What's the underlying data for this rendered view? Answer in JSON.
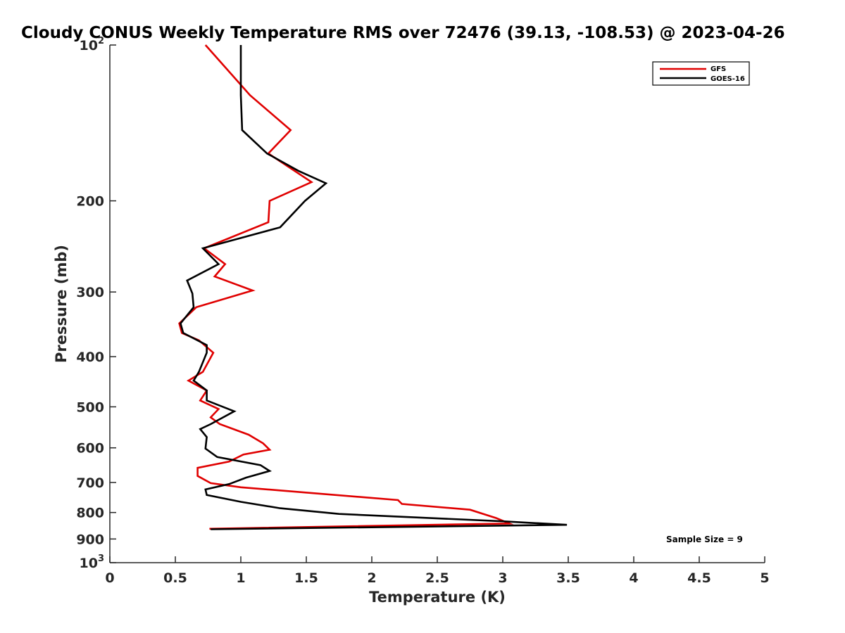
{
  "chart_data": {
    "type": "line",
    "title": "Cloudy CONUS Weekly Temperature RMS over 72476 (39.13, -108.53) @ 2023-04-26",
    "xlabel": "Temperature (K)",
    "ylabel": "Pressure (mb)",
    "xlim": [
      0,
      5
    ],
    "ylim": [
      100,
      1000
    ],
    "y_scale": "log",
    "y_reversed": true,
    "x_ticks": [
      "0",
      "0.5",
      "1",
      "1.5",
      "2",
      "2.5",
      "3",
      "3.5",
      "4",
      "4.5",
      "5"
    ],
    "y_ticks": [
      {
        "value": 100,
        "label": "10",
        "sup": "2"
      },
      {
        "value": 200,
        "label": "200",
        "sup": ""
      },
      {
        "value": 300,
        "label": "300",
        "sup": ""
      },
      {
        "value": 400,
        "label": "400",
        "sup": ""
      },
      {
        "value": 500,
        "label": "500",
        "sup": ""
      },
      {
        "value": 600,
        "label": "600",
        "sup": ""
      },
      {
        "value": 700,
        "label": "700",
        "sup": ""
      },
      {
        "value": 800,
        "label": "800",
        "sup": ""
      },
      {
        "value": 900,
        "label": "900",
        "sup": ""
      },
      {
        "value": 1000,
        "label": "10",
        "sup": "3"
      }
    ],
    "grid": false,
    "legend_position": "top-right",
    "series": [
      {
        "name": "GFS",
        "color": "#e00000",
        "points": [
          [
            0.73,
            100
          ],
          [
            1.07,
            125
          ],
          [
            1.38,
            146
          ],
          [
            1.21,
            162
          ],
          [
            1.54,
            184
          ],
          [
            1.22,
            200
          ],
          [
            1.21,
            220
          ],
          [
            0.72,
            247
          ],
          [
            0.88,
            265
          ],
          [
            0.8,
            280
          ],
          [
            1.09,
            298
          ],
          [
            0.66,
            321
          ],
          [
            0.53,
            345
          ],
          [
            0.55,
            360
          ],
          [
            0.68,
            372
          ],
          [
            0.79,
            393
          ],
          [
            0.71,
            428
          ],
          [
            0.6,
            445
          ],
          [
            0.74,
            465
          ],
          [
            0.69,
            486
          ],
          [
            0.83,
            505
          ],
          [
            0.77,
            524
          ],
          [
            0.84,
            540
          ],
          [
            1.06,
            566
          ],
          [
            1.17,
            588
          ],
          [
            1.22,
            605
          ],
          [
            1.02,
            618
          ],
          [
            0.91,
            638
          ],
          [
            0.67,
            656
          ],
          [
            0.67,
            680
          ],
          [
            0.77,
            702
          ],
          [
            1.0,
            715
          ],
          [
            2.2,
            757
          ],
          [
            2.23,
            770
          ],
          [
            2.75,
            790
          ],
          [
            2.95,
            820
          ],
          [
            3.05,
            840
          ],
          [
            0.76,
            860
          ]
        ]
      },
      {
        "name": "GOES-16",
        "color": "#000000",
        "points": [
          [
            1.0,
            100
          ],
          [
            1.0,
            125
          ],
          [
            1.01,
            146
          ],
          [
            1.2,
            162
          ],
          [
            1.44,
            175
          ],
          [
            1.65,
            185
          ],
          [
            1.49,
            200
          ],
          [
            1.3,
            225
          ],
          [
            0.71,
            247
          ],
          [
            0.83,
            265
          ],
          [
            0.59,
            285
          ],
          [
            0.63,
            302
          ],
          [
            0.64,
            321
          ],
          [
            0.54,
            345
          ],
          [
            0.56,
            360
          ],
          [
            0.74,
            380
          ],
          [
            0.74,
            393
          ],
          [
            0.68,
            428
          ],
          [
            0.64,
            445
          ],
          [
            0.74,
            465
          ],
          [
            0.74,
            486
          ],
          [
            0.95,
            510
          ],
          [
            0.77,
            540
          ],
          [
            0.69,
            552
          ],
          [
            0.74,
            572
          ],
          [
            0.73,
            602
          ],
          [
            0.82,
            625
          ],
          [
            1.15,
            648
          ],
          [
            1.22,
            665
          ],
          [
            1.04,
            685
          ],
          [
            0.91,
            705
          ],
          [
            0.73,
            722
          ],
          [
            0.74,
            740
          ],
          [
            1.0,
            763
          ],
          [
            1.3,
            785
          ],
          [
            1.75,
            805
          ],
          [
            3.0,
            832
          ],
          [
            3.49,
            845
          ],
          [
            0.77,
            862
          ]
        ]
      }
    ],
    "annotation": "Sample Size = 9"
  }
}
